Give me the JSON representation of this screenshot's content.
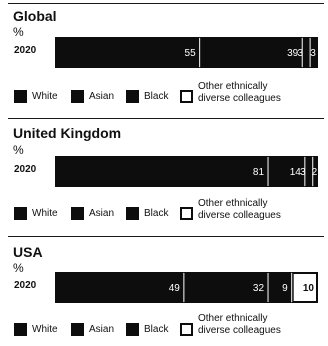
{
  "colors": {
    "bar": "#0d0d0d",
    "divider": "#ffffff",
    "text": "#111111",
    "label_on_bar": "#ffffff",
    "hollow_fill": "#ffffff"
  },
  "legend": {
    "white": "White",
    "asian": "Asian",
    "black": "Black",
    "other_line1": "Other ethnically",
    "other_line2": "diverse colleagues"
  },
  "chart_data": [
    {
      "type": "bar",
      "orientation": "horizontal",
      "stacked": true,
      "title": "Global",
      "unit": "%",
      "categories": [
        "2020"
      ],
      "series": [
        {
          "name": "White",
          "values": [
            55
          ]
        },
        {
          "name": "Asian",
          "values": [
            39
          ]
        },
        {
          "name": "Black",
          "values": [
            3
          ]
        },
        {
          "name": "Other ethnically diverse colleagues",
          "values": [
            3
          ]
        }
      ]
    },
    {
      "type": "bar",
      "orientation": "horizontal",
      "stacked": true,
      "title": "United Kingdom",
      "unit": "%",
      "categories": [
        "2020"
      ],
      "series": [
        {
          "name": "White",
          "values": [
            81
          ]
        },
        {
          "name": "Asian",
          "values": [
            14
          ]
        },
        {
          "name": "Black",
          "values": [
            3
          ]
        },
        {
          "name": "Other ethnically diverse colleagues",
          "values": [
            2
          ]
        }
      ]
    },
    {
      "type": "bar",
      "orientation": "horizontal",
      "stacked": true,
      "title": "USA",
      "unit": "%",
      "categories": [
        "2020"
      ],
      "series": [
        {
          "name": "White",
          "values": [
            49
          ]
        },
        {
          "name": "Asian",
          "values": [
            32
          ]
        },
        {
          "name": "Black",
          "values": [
            9
          ]
        },
        {
          "name": "Other ethnically diverse colleagues",
          "values": [
            10
          ]
        }
      ]
    }
  ]
}
